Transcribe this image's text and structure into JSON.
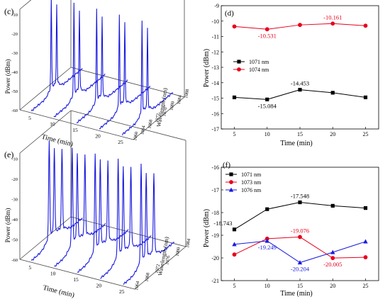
{
  "panels": {
    "c": {
      "label": "(c)",
      "xlabel": "Time (min)",
      "ylabel": "Power (dBm)",
      "zlabel": "Wavelength (nm)",
      "time_ticks": [
        "5",
        "10",
        "15",
        "20",
        "25"
      ],
      "power_ticks": [
        "-10",
        "-20",
        "-30",
        "-40",
        "-50",
        "-60"
      ],
      "wavelength_ticks": [
        "1060",
        "1064",
        "1068",
        "1072",
        "1076",
        "1080",
        "1084",
        "1088"
      ],
      "peak_wavelengths_nm": [
        1071,
        1074
      ],
      "line_color": "#1a1adf"
    },
    "e": {
      "label": "(e)",
      "xlabel": "Time (min)",
      "ylabel": "Power (dBm)",
      "zlabel": "Wavelength (nm)",
      "time_ticks": [
        "5",
        "10",
        "15",
        "20",
        "25"
      ],
      "power_ticks": [
        "-10",
        "-20",
        "-30",
        "-40",
        "-50",
        "-60"
      ],
      "wavelength_ticks": [
        "1064",
        "1068",
        "1072",
        "1076",
        "1080",
        "1084"
      ],
      "peak_wavelengths_nm": [
        1071,
        1073,
        1076
      ],
      "line_color": "#1a1adf"
    }
  },
  "chart_data": [
    {
      "panel": "(d)",
      "type": "line",
      "x": [
        5,
        10,
        15,
        20,
        25
      ],
      "xlabel": "Time (min)",
      "ylabel": "Power (dBm)",
      "xticks": [
        "5",
        "10",
        "15",
        "20",
        "25"
      ],
      "yticks": [
        "-9",
        "-10",
        "-11",
        "-12",
        "-13",
        "-14",
        "-15",
        "-16",
        "-17"
      ],
      "xlim": [
        3,
        27
      ],
      "ylim": [
        -17,
        -9
      ],
      "legend_position": "middle-left",
      "series": [
        {
          "name": "1071 nm",
          "color": "#000000",
          "marker": "square",
          "values": [
            -14.95,
            -15.084,
            -14.453,
            -14.65,
            -14.95
          ]
        },
        {
          "name": "1074 nm",
          "color": "#e8001c",
          "marker": "circle",
          "values": [
            -10.35,
            -10.531,
            -10.25,
            -10.161,
            -10.3
          ]
        }
      ],
      "annotations": [
        {
          "text": "-10.531",
          "series": 1,
          "point": 1,
          "place": "below",
          "color": "#e8001c"
        },
        {
          "text": "-10.161",
          "series": 1,
          "point": 3,
          "place": "above",
          "color": "#e8001c"
        },
        {
          "text": "-14.453",
          "series": 0,
          "point": 2,
          "place": "above",
          "color": "#000000"
        },
        {
          "text": "-15.084",
          "series": 0,
          "point": 1,
          "place": "below",
          "color": "#000000"
        }
      ]
    },
    {
      "panel": "(f)",
      "type": "line",
      "x": [
        5,
        10,
        15,
        20,
        25
      ],
      "xlabel": "Time (min)",
      "ylabel": "Power (dBm)",
      "xticks": [
        "5",
        "10",
        "15",
        "20",
        "25"
      ],
      "yticks": [
        "-16",
        "-17",
        "-18",
        "-19",
        "-20",
        "-21"
      ],
      "xlim": [
        3,
        27
      ],
      "ylim": [
        -21,
        -16
      ],
      "legend_position": "top-left",
      "series": [
        {
          "name": "1071 nm",
          "color": "#000000",
          "marker": "square",
          "values": [
            -18.743,
            -17.85,
            -17.548,
            -17.7,
            -17.8
          ]
        },
        {
          "name": "1073 nm",
          "color": "#e8001c",
          "marker": "circle",
          "values": [
            -19.85,
            -19.15,
            -19.076,
            -20.005,
            -19.97
          ]
        },
        {
          "name": "1076 nm",
          "color": "#1a1adf",
          "marker": "triangle",
          "values": [
            -19.4,
            -19.249,
            -20.204,
            -19.75,
            -19.28
          ]
        }
      ],
      "annotations": [
        {
          "text": "-17.548",
          "series": 0,
          "point": 2,
          "place": "above",
          "color": "#000000"
        },
        {
          "text": "-18.743",
          "series": 0,
          "point": 0,
          "place": "left",
          "color": "#000000"
        },
        {
          "text": "-19.076",
          "series": 1,
          "point": 2,
          "place": "above",
          "color": "#e8001c"
        },
        {
          "text": "-19.249",
          "series": 2,
          "point": 1,
          "place": "below",
          "color": "#1a1adf"
        },
        {
          "text": "-20.204",
          "series": 2,
          "point": 2,
          "place": "below",
          "color": "#1a1adf"
        },
        {
          "text": "-20.005",
          "series": 1,
          "point": 3,
          "place": "below",
          "color": "#e8001c"
        }
      ]
    }
  ]
}
